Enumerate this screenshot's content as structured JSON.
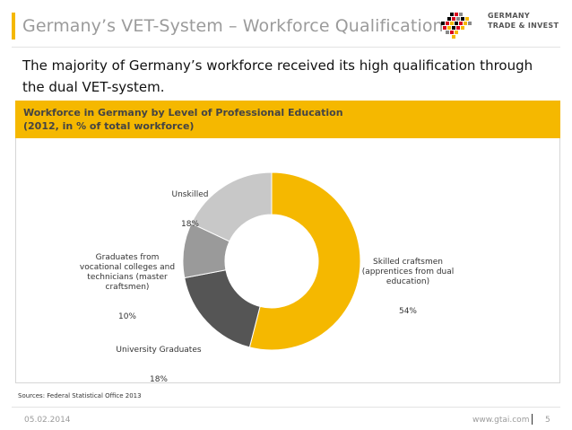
{
  "slide": {
    "title": "Germany’s VET-System – Workforce Qualification",
    "intro": "The majority of Germany’s workforce received its high qualification through the dual VET-system."
  },
  "logo": {
    "line1": "GERMANY",
    "line2": "TRADE & INVEST",
    "colors": [
      "#000000",
      "#d9001b",
      "#f5b800",
      "#8a8a8a"
    ]
  },
  "chart_data": {
    "type": "pie",
    "title": "Workforce in Germany by Level of Professional Education\n(2012, in % of total workforce)",
    "categories": [
      "Skilled craftsmen\n(apprentices from dual\neducation)",
      "University Graduates",
      "Graduates from\nvocational colleges and\ntechnicians (master\ncraftsmen)",
      "Unskilled"
    ],
    "values": [
      54,
      18,
      10,
      18
    ],
    "value_labels": [
      "54%",
      "18%",
      "10%",
      "18%"
    ],
    "colors": [
      "#f5b800",
      "#555555",
      "#9a9a9a",
      "#c8c8c8"
    ],
    "hole": true
  },
  "source": "Sources: Federal Statistical Office 2013",
  "footer": {
    "date": "05.02.2014",
    "url": "www.gtai.com",
    "page": "5"
  }
}
